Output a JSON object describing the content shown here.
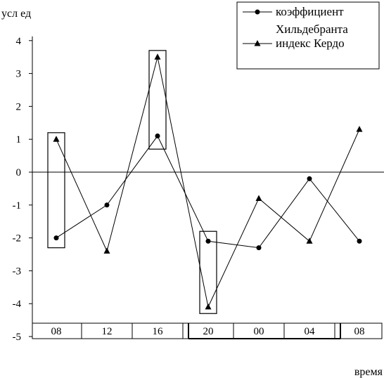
{
  "chart_data": {
    "type": "line",
    "ylabel": "усл ед",
    "xlabel": "время",
    "ylim": [
      -5,
      4
    ],
    "yticks": [
      4,
      3,
      2,
      1,
      0,
      -1,
      -2,
      -3,
      -4,
      -5
    ],
    "categories": [
      "08",
      "12",
      "16",
      "20",
      "00",
      "04",
      "08"
    ],
    "series": [
      {
        "name": "коэффициент Хильдебранта",
        "marker": "circle",
        "values": [
          -2.0,
          -1.0,
          1.1,
          -2.1,
          -2.3,
          -0.2,
          -2.1
        ]
      },
      {
        "name": "индекс Кердо",
        "marker": "triangle",
        "values": [
          1.0,
          -2.4,
          3.5,
          -4.1,
          -0.8,
          -2.1,
          1.3
        ]
      }
    ],
    "highlight_boxes": [
      {
        "category_index": 0,
        "y_range": [
          -2.3,
          1.2
        ]
      },
      {
        "category_index": 2,
        "y_range": [
          0.7,
          3.7
        ]
      },
      {
        "category_index": 3,
        "y_range": [
          -4.3,
          -1.8
        ]
      }
    ],
    "grid": false,
    "legend_position": "top-right",
    "colors": {
      "line": "#000000",
      "background": "#ffffff"
    }
  }
}
